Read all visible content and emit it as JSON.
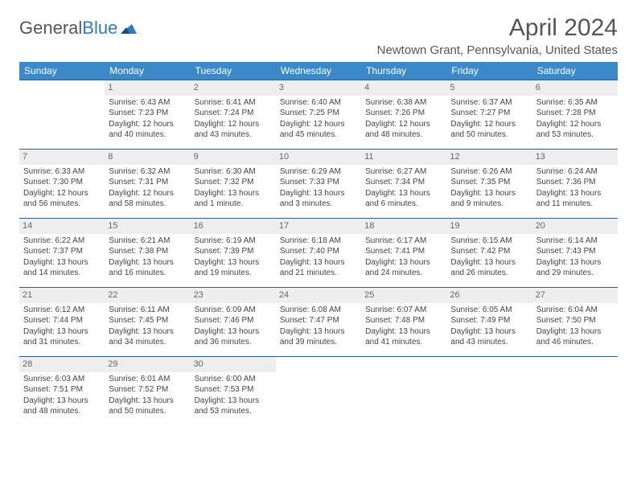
{
  "logo": {
    "text_part1": "General",
    "text_part2": "Blue"
  },
  "title": "April 2024",
  "location": "Newtown Grant, Pennsylvania, United States",
  "header_bg": "#3b89c9",
  "row_border": "#2c5f8d",
  "daynum_bg": "#eeeeee",
  "day_headers": [
    "Sunday",
    "Monday",
    "Tuesday",
    "Wednesday",
    "Thursday",
    "Friday",
    "Saturday"
  ],
  "weeks": [
    [
      {
        "n": "",
        "sr": "",
        "ss": "",
        "dl": ""
      },
      {
        "n": "1",
        "sr": "Sunrise: 6:43 AM",
        "ss": "Sunset: 7:23 PM",
        "dl": "Daylight: 12 hours and 40 minutes."
      },
      {
        "n": "2",
        "sr": "Sunrise: 6:41 AM",
        "ss": "Sunset: 7:24 PM",
        "dl": "Daylight: 12 hours and 43 minutes."
      },
      {
        "n": "3",
        "sr": "Sunrise: 6:40 AM",
        "ss": "Sunset: 7:25 PM",
        "dl": "Daylight: 12 hours and 45 minutes."
      },
      {
        "n": "4",
        "sr": "Sunrise: 6:38 AM",
        "ss": "Sunset: 7:26 PM",
        "dl": "Daylight: 12 hours and 48 minutes."
      },
      {
        "n": "5",
        "sr": "Sunrise: 6:37 AM",
        "ss": "Sunset: 7:27 PM",
        "dl": "Daylight: 12 hours and 50 minutes."
      },
      {
        "n": "6",
        "sr": "Sunrise: 6:35 AM",
        "ss": "Sunset: 7:28 PM",
        "dl": "Daylight: 12 hours and 53 minutes."
      }
    ],
    [
      {
        "n": "7",
        "sr": "Sunrise: 6:33 AM",
        "ss": "Sunset: 7:30 PM",
        "dl": "Daylight: 12 hours and 56 minutes."
      },
      {
        "n": "8",
        "sr": "Sunrise: 6:32 AM",
        "ss": "Sunset: 7:31 PM",
        "dl": "Daylight: 12 hours and 58 minutes."
      },
      {
        "n": "9",
        "sr": "Sunrise: 6:30 AM",
        "ss": "Sunset: 7:32 PM",
        "dl": "Daylight: 13 hours and 1 minute."
      },
      {
        "n": "10",
        "sr": "Sunrise: 6:29 AM",
        "ss": "Sunset: 7:33 PM",
        "dl": "Daylight: 13 hours and 3 minutes."
      },
      {
        "n": "11",
        "sr": "Sunrise: 6:27 AM",
        "ss": "Sunset: 7:34 PM",
        "dl": "Daylight: 13 hours and 6 minutes."
      },
      {
        "n": "12",
        "sr": "Sunrise: 6:26 AM",
        "ss": "Sunset: 7:35 PM",
        "dl": "Daylight: 13 hours and 9 minutes."
      },
      {
        "n": "13",
        "sr": "Sunrise: 6:24 AM",
        "ss": "Sunset: 7:36 PM",
        "dl": "Daylight: 13 hours and 11 minutes."
      }
    ],
    [
      {
        "n": "14",
        "sr": "Sunrise: 6:22 AM",
        "ss": "Sunset: 7:37 PM",
        "dl": "Daylight: 13 hours and 14 minutes."
      },
      {
        "n": "15",
        "sr": "Sunrise: 6:21 AM",
        "ss": "Sunset: 7:38 PM",
        "dl": "Daylight: 13 hours and 16 minutes."
      },
      {
        "n": "16",
        "sr": "Sunrise: 6:19 AM",
        "ss": "Sunset: 7:39 PM",
        "dl": "Daylight: 13 hours and 19 minutes."
      },
      {
        "n": "17",
        "sr": "Sunrise: 6:18 AM",
        "ss": "Sunset: 7:40 PM",
        "dl": "Daylight: 13 hours and 21 minutes."
      },
      {
        "n": "18",
        "sr": "Sunrise: 6:17 AM",
        "ss": "Sunset: 7:41 PM",
        "dl": "Daylight: 13 hours and 24 minutes."
      },
      {
        "n": "19",
        "sr": "Sunrise: 6:15 AM",
        "ss": "Sunset: 7:42 PM",
        "dl": "Daylight: 13 hours and 26 minutes."
      },
      {
        "n": "20",
        "sr": "Sunrise: 6:14 AM",
        "ss": "Sunset: 7:43 PM",
        "dl": "Daylight: 13 hours and 29 minutes."
      }
    ],
    [
      {
        "n": "21",
        "sr": "Sunrise: 6:12 AM",
        "ss": "Sunset: 7:44 PM",
        "dl": "Daylight: 13 hours and 31 minutes."
      },
      {
        "n": "22",
        "sr": "Sunrise: 6:11 AM",
        "ss": "Sunset: 7:45 PM",
        "dl": "Daylight: 13 hours and 34 minutes."
      },
      {
        "n": "23",
        "sr": "Sunrise: 6:09 AM",
        "ss": "Sunset: 7:46 PM",
        "dl": "Daylight: 13 hours and 36 minutes."
      },
      {
        "n": "24",
        "sr": "Sunrise: 6:08 AM",
        "ss": "Sunset: 7:47 PM",
        "dl": "Daylight: 13 hours and 39 minutes."
      },
      {
        "n": "25",
        "sr": "Sunrise: 6:07 AM",
        "ss": "Sunset: 7:48 PM",
        "dl": "Daylight: 13 hours and 41 minutes."
      },
      {
        "n": "26",
        "sr": "Sunrise: 6:05 AM",
        "ss": "Sunset: 7:49 PM",
        "dl": "Daylight: 13 hours and 43 minutes."
      },
      {
        "n": "27",
        "sr": "Sunrise: 6:04 AM",
        "ss": "Sunset: 7:50 PM",
        "dl": "Daylight: 13 hours and 46 minutes."
      }
    ],
    [
      {
        "n": "28",
        "sr": "Sunrise: 6:03 AM",
        "ss": "Sunset: 7:51 PM",
        "dl": "Daylight: 13 hours and 48 minutes."
      },
      {
        "n": "29",
        "sr": "Sunrise: 6:01 AM",
        "ss": "Sunset: 7:52 PM",
        "dl": "Daylight: 13 hours and 50 minutes."
      },
      {
        "n": "30",
        "sr": "Sunrise: 6:00 AM",
        "ss": "Sunset: 7:53 PM",
        "dl": "Daylight: 13 hours and 53 minutes."
      },
      {
        "n": "",
        "sr": "",
        "ss": "",
        "dl": ""
      },
      {
        "n": "",
        "sr": "",
        "ss": "",
        "dl": ""
      },
      {
        "n": "",
        "sr": "",
        "ss": "",
        "dl": ""
      },
      {
        "n": "",
        "sr": "",
        "ss": "",
        "dl": ""
      }
    ]
  ]
}
